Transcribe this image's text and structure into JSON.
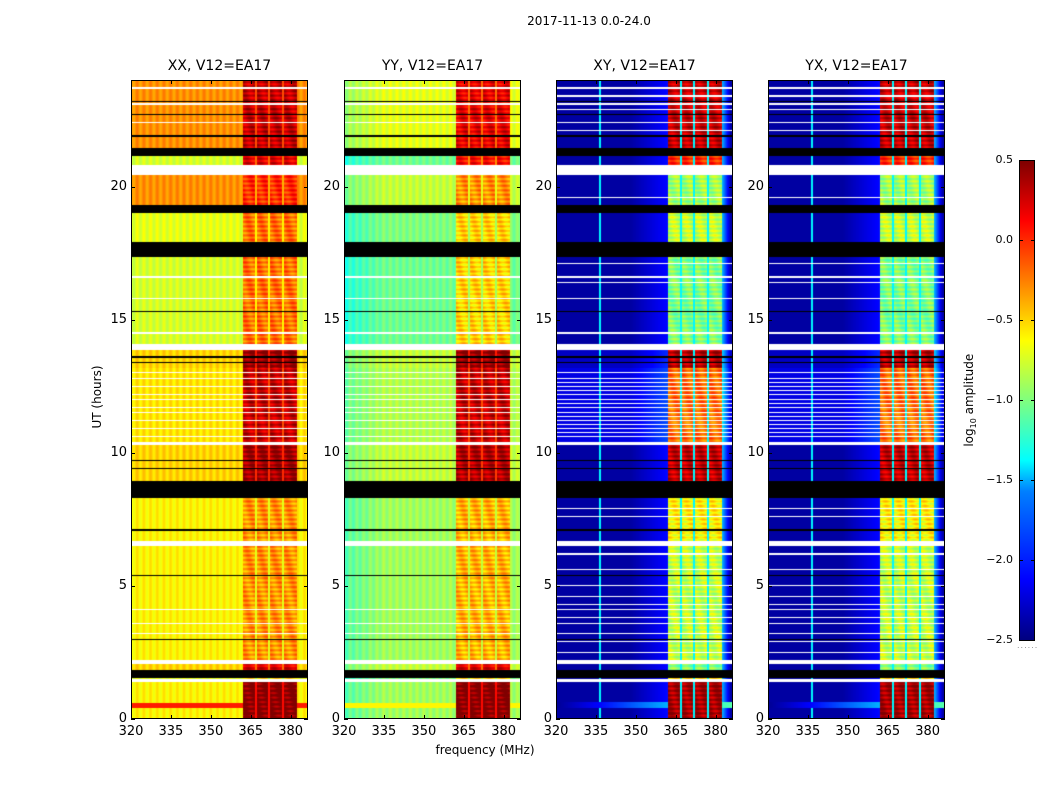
{
  "chart_data": {
    "type": "heatmap",
    "title": "2017-11-13 0.0-24.0",
    "xlabel": "frequency (MHz)",
    "ylabel": "UT (hours)",
    "xlim": [
      320,
      386.5
    ],
    "ylim": [
      0,
      24
    ],
    "xticks": [
      "320",
      "335",
      "350",
      "365",
      "380"
    ],
    "xtick_values": [
      320,
      335,
      350,
      365,
      380
    ],
    "yticks": [
      "0",
      "5",
      "10",
      "15",
      "20"
    ],
    "ytick_values": [
      0,
      5,
      10,
      15,
      20
    ],
    "colormap": "jet",
    "colorbar": {
      "label_pre": "log",
      "label_sub": "10",
      "label_post": " amplitude",
      "range": [
        -2.5,
        0.5
      ],
      "ticks": [
        "0.5",
        "0.0",
        "−0.5",
        "−1.0",
        "−1.5",
        "−2.0",
        "−2.5"
      ],
      "tick_values": [
        0.5,
        0.0,
        -0.5,
        -1.0,
        -1.5,
        -2.0,
        -2.5
      ],
      "footer": "......"
    },
    "hot_band_mhz": [
      362,
      382.5
    ],
    "hot_band_gaps_mhz": [
      [
        366.6,
        367.3
      ],
      [
        371.6,
        372.3
      ],
      [
        376.6,
        377.3
      ]
    ],
    "flagged_hours": [
      [
        1.54,
        1.85
      ],
      [
        8.3,
        8.94
      ],
      [
        17.35,
        17.9
      ],
      [
        19.0,
        19.3
      ],
      [
        21.15,
        21.45
      ]
    ],
    "blank_hours": [
      [
        1.4,
        1.5
      ],
      [
        2.05,
        2.2
      ],
      [
        6.5,
        6.7
      ],
      [
        10.3,
        10.42
      ],
      [
        13.85,
        14.08
      ],
      [
        20.45,
        20.8
      ]
    ],
    "thin_blank_hours": [
      3.2,
      3.6,
      4.1,
      10.6,
      10.9,
      11.2,
      11.5,
      11.7,
      12.0,
      12.2,
      12.5,
      12.8,
      13.0,
      14.5,
      15.8,
      16.6,
      22.4,
      23.1,
      23.7
    ],
    "thin_blank_hours_cross": [
      2.5,
      2.9,
      3.8,
      4.3,
      4.6,
      5.0,
      5.6,
      6.2,
      7.6,
      7.9,
      10.75,
      11.05,
      11.35,
      11.85,
      12.35,
      12.65,
      16.4,
      17.1,
      19.6,
      22.1,
      22.9,
      23.4
    ],
    "thin_flag_hours": [
      3.0,
      5.4,
      7.1,
      9.4,
      9.7,
      13.4,
      13.6,
      15.3,
      21.9,
      22.7,
      23.2
    ],
    "panels": [
      {
        "title": "XX, V12=EA17",
        "kind": "parallel",
        "offset": 0,
        "segments": [
          [
            0,
            1.4,
            -0.6,
            0.5
          ],
          [
            1.85,
            2.05,
            -0.5,
            0.2
          ],
          [
            2.2,
            6.5,
            -0.6,
            -0.3
          ],
          [
            6.7,
            8.3,
            -0.6,
            -0.3
          ],
          [
            8.94,
            10.3,
            -0.5,
            0.4
          ],
          [
            10.42,
            13.2,
            -0.55,
            0.3
          ],
          [
            13.2,
            13.85,
            -0.5,
            0.45
          ],
          [
            14.08,
            17.35,
            -0.75,
            -0.2
          ],
          [
            17.9,
            19.0,
            -0.7,
            -0.2
          ],
          [
            19.3,
            20.45,
            -0.3,
            0.0
          ],
          [
            20.8,
            21.15,
            -0.75,
            0.2
          ],
          [
            21.45,
            24,
            -0.3,
            0.3
          ]
        ]
      },
      {
        "title": "YY, V12=EA17",
        "kind": "parallel",
        "offset": -0.3,
        "segments": [
          [
            0,
            1.4,
            -0.6,
            0.5
          ],
          [
            1.85,
            2.05,
            -0.5,
            0.2
          ],
          [
            2.2,
            6.5,
            -0.6,
            -0.4
          ],
          [
            6.7,
            8.3,
            -0.6,
            -0.4
          ],
          [
            8.94,
            10.3,
            -0.5,
            0.35
          ],
          [
            10.42,
            13.2,
            -0.55,
            0.3
          ],
          [
            13.2,
            13.85,
            -0.5,
            0.45
          ],
          [
            14.08,
            17.35,
            -0.75,
            -0.5
          ],
          [
            17.9,
            19.0,
            -0.7,
            -0.5
          ],
          [
            19.3,
            20.45,
            -0.5,
            -0.3
          ],
          [
            20.8,
            21.15,
            -0.75,
            0.1
          ],
          [
            21.45,
            24,
            -0.4,
            0.2
          ]
        ]
      },
      {
        "title": "XY, V12=EA17",
        "kind": "cross",
        "offset": 0,
        "segments": [
          [
            0,
            1.4,
            -2.4,
            0.4
          ],
          [
            1.85,
            2.05,
            -2.4,
            -1.0
          ],
          [
            2.2,
            6.5,
            -2.4,
            -0.8
          ],
          [
            6.7,
            8.3,
            -2.4,
            -0.6
          ],
          [
            8.94,
            10.3,
            -2.4,
            0.3
          ],
          [
            10.42,
            13.2,
            -2.2,
            -0.2
          ],
          [
            13.2,
            13.85,
            -2.3,
            0.35
          ],
          [
            14.08,
            17.35,
            -2.4,
            -1.0
          ],
          [
            17.9,
            19.0,
            -2.4,
            -0.8
          ],
          [
            19.3,
            20.45,
            -2.4,
            -0.9
          ],
          [
            20.8,
            21.15,
            -2.4,
            0.0
          ],
          [
            21.45,
            24,
            -2.4,
            0.3
          ]
        ]
      },
      {
        "title": "YX, V12=EA17",
        "kind": "cross",
        "offset": 0,
        "segments": [
          [
            0,
            1.4,
            -2.4,
            0.4
          ],
          [
            1.85,
            2.05,
            -2.4,
            -1.0
          ],
          [
            2.2,
            6.5,
            -2.4,
            -0.8
          ],
          [
            6.7,
            8.3,
            -2.4,
            -0.6
          ],
          [
            8.94,
            10.3,
            -2.4,
            0.3
          ],
          [
            10.42,
            13.2,
            -2.2,
            -0.2
          ],
          [
            13.2,
            13.85,
            -2.3,
            0.35
          ],
          [
            14.08,
            17.35,
            -2.4,
            -1.0
          ],
          [
            17.9,
            19.0,
            -2.4,
            -0.8
          ],
          [
            19.3,
            20.45,
            -2.4,
            -0.9
          ],
          [
            20.8,
            21.15,
            -2.4,
            0.0
          ],
          [
            21.45,
            24,
            -2.4,
            0.3
          ]
        ]
      }
    ]
  }
}
